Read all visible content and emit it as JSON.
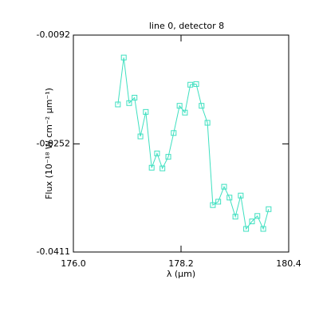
{
  "chart_data": {
    "type": "line",
    "title": "line 0, detector 8",
    "xlabel": "λ (µm)",
    "ylabel": "Flux (10⁻¹⁸ W cm⁻² µm⁻¹)",
    "x": [
      176.91,
      177.03,
      177.14,
      177.25,
      177.37,
      177.48,
      177.6,
      177.71,
      177.82,
      177.94,
      178.05,
      178.17,
      178.28,
      178.39,
      178.51,
      178.62,
      178.74,
      178.85,
      178.96,
      179.08,
      179.19,
      179.31,
      179.42,
      179.53,
      179.65,
      179.76,
      179.88,
      179.99
    ],
    "series": [
      {
        "name": "detector 8",
        "color": "#3ee0c0",
        "values": [
          -0.0194,
          -0.0125,
          -0.0192,
          -0.0184,
          -0.0241,
          -0.0205,
          -0.0287,
          -0.0266,
          -0.0288,
          -0.0271,
          -0.0236,
          -0.0196,
          -0.0206,
          -0.0165,
          -0.0164,
          -0.0196,
          -0.0221,
          -0.0342,
          -0.0337,
          -0.0315,
          -0.0331,
          -0.0359,
          -0.0328,
          -0.0377,
          -0.0366,
          -0.0358,
          -0.0377,
          -0.0348
        ]
      }
    ],
    "xlim": [
      176.0,
      180.4
    ],
    "xticks": [
      {
        "value": 176.0,
        "label": "176.0"
      },
      {
        "value": 178.2,
        "label": "178.2"
      },
      {
        "value": 180.4,
        "label": "180.4"
      }
    ],
    "ylim": [
      -0.0411,
      -0.0092
    ],
    "yticks": [
      -0.0411,
      -0.0252,
      -0.0092
    ]
  }
}
